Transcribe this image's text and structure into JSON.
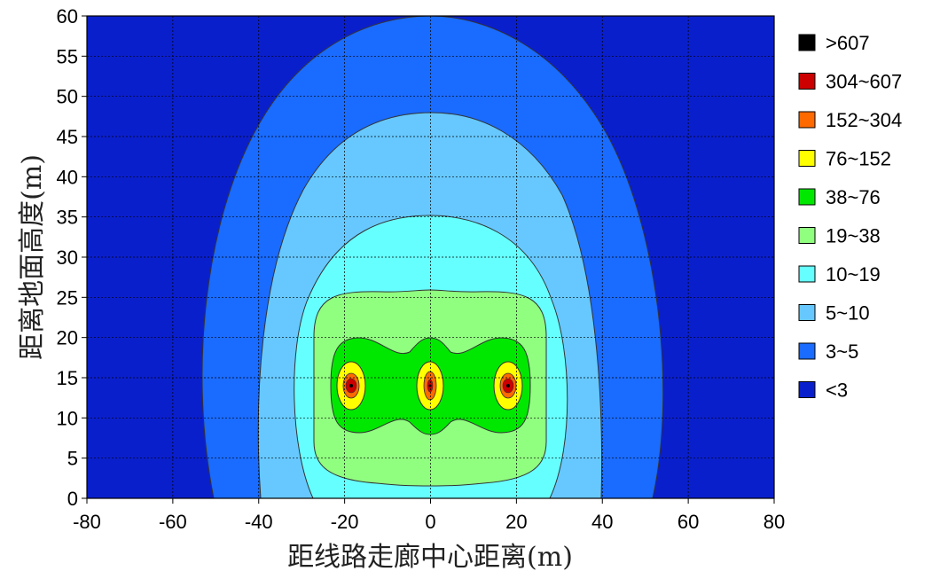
{
  "chart_data": {
    "type": "contour",
    "title": "",
    "xlabel": "距线路走廊中心距离(m)",
    "ylabel": "距离地面高度(m)",
    "xlim": [
      -80,
      80
    ],
    "ylim": [
      0,
      60
    ],
    "xticks": [
      "-80",
      "-60",
      "-40",
      "-20",
      "0",
      "20",
      "40",
      "60",
      "80"
    ],
    "yticks": [
      "0",
      "5",
      "10",
      "15",
      "20",
      "25",
      "30",
      "35",
      "40",
      "45",
      "50",
      "55",
      "60"
    ],
    "grid": true,
    "grid_style": "dotted",
    "legend_position": "right",
    "sources": [
      {
        "x": -18.5,
        "y": 14
      },
      {
        "x": 0,
        "y": 14
      },
      {
        "x": 18.5,
        "y": 14
      }
    ],
    "levels": [
      {
        "label": ">607",
        "color": "#000000"
      },
      {
        "label": "304~607",
        "color": "#cc0000"
      },
      {
        "label": "152~304",
        "color": "#ff6a00"
      },
      {
        "label": "76~152",
        "color": "#ffff00"
      },
      {
        "label": "38~76",
        "color": "#00e800"
      },
      {
        "label": "19~38",
        "color": "#90ff80"
      },
      {
        "label": "10~19",
        "color": "#66ffff"
      },
      {
        "label": "5~10",
        "color": "#66c8ff"
      },
      {
        "label": "3~5",
        "color": "#1a6bff"
      },
      {
        "label": "<3",
        "color": "#0a1fcc"
      }
    ],
    "regions": [
      {
        "level": "3~5",
        "x_range": [
          -51,
          50
        ],
        "y_top": 60
      },
      {
        "level": "5~10",
        "x_range": [
          -39.5,
          39.5
        ],
        "y_top": 48
      },
      {
        "level": "10~19",
        "x_range": [
          -33,
          32
        ],
        "y_top": 35.5
      },
      {
        "level": "19~38",
        "x_range": [
          -27,
          27
        ],
        "y_range": [
          1.5,
          26
        ]
      },
      {
        "level": "38~76",
        "x_range": [
          -24,
          25
        ],
        "y_range": [
          8,
          20
        ]
      },
      {
        "level": "76~152",
        "x_range": [
          -21.5,
          -15
        ],
        "y_range": [
          9.5,
          18
        ]
      },
      {
        "level": "76~152",
        "x_range": [
          -3.5,
          3.5
        ],
        "y_range": [
          9.5,
          18
        ]
      },
      {
        "level": "76~152",
        "x_range": [
          15,
          21.5
        ],
        "y_range": [
          9.5,
          18
        ]
      }
    ]
  }
}
